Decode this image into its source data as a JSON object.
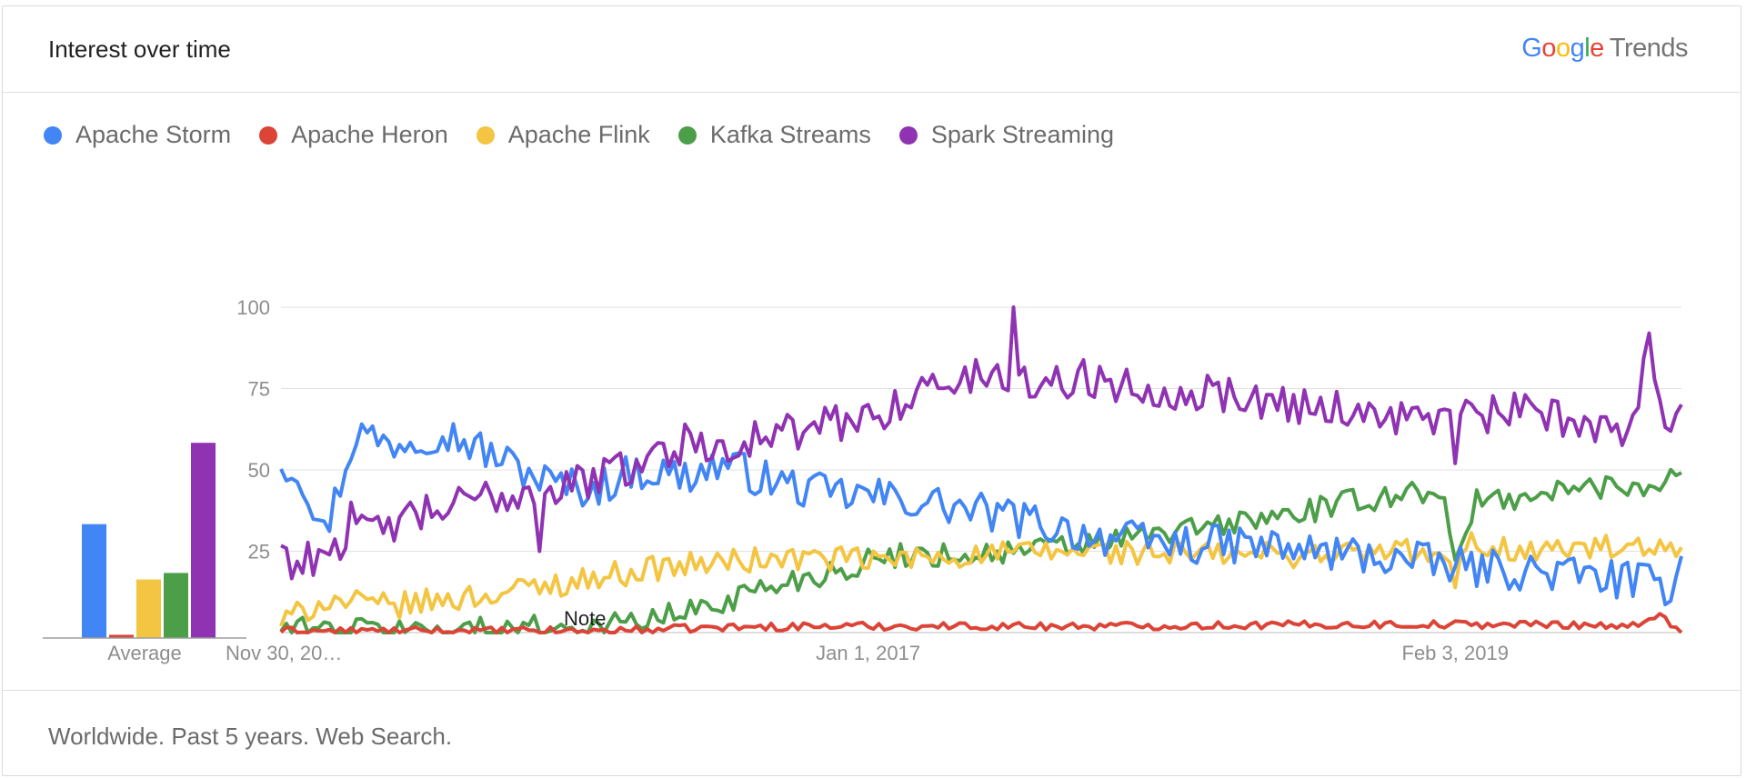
{
  "header": {
    "title": "Interest over time",
    "brand_google": "Google",
    "brand_trends": "Trends"
  },
  "footer": {
    "text": "Worldwide. Past 5 years. Web Search."
  },
  "note": "Note",
  "chart_data": {
    "type": "line",
    "title": "Interest over time",
    "ylim": [
      0,
      100
    ],
    "y_ticks": [
      25,
      50,
      75,
      100
    ],
    "x_tick_labels": [
      {
        "label": "Nov 30, 20…",
        "index": 0
      },
      {
        "label": "Jan 1, 2017",
        "index": 109
      },
      {
        "label": "Feb 3, 2019",
        "index": 218
      }
    ],
    "weeks": 261,
    "grid": true,
    "legend_position": "top-left",
    "series": [
      {
        "name": "Apache Storm",
        "color": "#4285f4",
        "keys": [
          [
            0,
            53
          ],
          [
            4,
            48
          ],
          [
            8,
            30
          ],
          [
            14,
            62
          ],
          [
            20,
            58
          ],
          [
            30,
            62
          ],
          [
            40,
            54
          ],
          [
            50,
            46
          ],
          [
            58,
            44
          ],
          [
            66,
            50
          ],
          [
            75,
            48
          ],
          [
            82,
            52
          ],
          [
            90,
            47
          ],
          [
            100,
            43
          ],
          [
            110,
            42
          ],
          [
            120,
            40
          ],
          [
            130,
            37
          ],
          [
            140,
            34
          ],
          [
            150,
            30
          ],
          [
            160,
            28
          ],
          [
            170,
            27
          ],
          [
            180,
            27
          ],
          [
            190,
            25
          ],
          [
            200,
            24
          ],
          [
            210,
            22
          ],
          [
            220,
            20
          ],
          [
            230,
            19
          ],
          [
            240,
            18
          ],
          [
            250,
            16
          ],
          [
            258,
            14
          ],
          [
            260,
            26
          ]
        ],
        "jitter": 6
      },
      {
        "name": "Apache Heron",
        "color": "#db4437",
        "keys": [
          [
            0,
            0.5
          ],
          [
            60,
            0.5
          ],
          [
            70,
            1
          ],
          [
            80,
            1.5
          ],
          [
            100,
            2
          ],
          [
            150,
            2
          ],
          [
            200,
            2.5
          ],
          [
            240,
            2.5
          ],
          [
            252,
            2
          ],
          [
            256,
            5
          ],
          [
            260,
            1
          ]
        ],
        "jitter": 1.2
      },
      {
        "name": "Apache Flink",
        "color": "#f4c542",
        "keys": [
          [
            0,
            3
          ],
          [
            8,
            10
          ],
          [
            20,
            8
          ],
          [
            40,
            12
          ],
          [
            55,
            16
          ],
          [
            70,
            20
          ],
          [
            85,
            22
          ],
          [
            100,
            23
          ],
          [
            110,
            22
          ],
          [
            130,
            24
          ],
          [
            150,
            25
          ],
          [
            170,
            24
          ],
          [
            190,
            24
          ],
          [
            210,
            25
          ],
          [
            216,
            22
          ],
          [
            218,
            15
          ],
          [
            220,
            28
          ],
          [
            230,
            25
          ],
          [
            245,
            26
          ],
          [
            260,
            24
          ]
        ],
        "jitter": 4
      },
      {
        "name": "Kafka Streams",
        "color": "#4c9e48",
        "keys": [
          [
            0,
            1
          ],
          [
            40,
            1
          ],
          [
            60,
            2
          ],
          [
            75,
            6
          ],
          [
            90,
            14
          ],
          [
            105,
            20
          ],
          [
            115,
            24
          ],
          [
            130,
            24
          ],
          [
            150,
            27
          ],
          [
            170,
            32
          ],
          [
            190,
            37
          ],
          [
            205,
            42
          ],
          [
            216,
            44
          ],
          [
            218,
            20
          ],
          [
            222,
            40
          ],
          [
            240,
            44
          ],
          [
            255,
            46
          ],
          [
            260,
            49
          ]
        ],
        "jitter": 4
      },
      {
        "name": "Spark Streaming",
        "color": "#9033b3",
        "keys": [
          [
            0,
            27
          ],
          [
            3,
            20
          ],
          [
            10,
            28
          ],
          [
            20,
            33
          ],
          [
            30,
            38
          ],
          [
            40,
            42
          ],
          [
            50,
            44
          ],
          [
            60,
            48
          ],
          [
            70,
            55
          ],
          [
            80,
            58
          ],
          [
            90,
            60
          ],
          [
            100,
            63
          ],
          [
            110,
            67
          ],
          [
            120,
            75
          ],
          [
            130,
            79
          ],
          [
            140,
            77
          ],
          [
            150,
            78
          ],
          [
            160,
            75
          ],
          [
            170,
            74
          ],
          [
            180,
            72
          ],
          [
            190,
            70
          ],
          [
            200,
            68
          ],
          [
            210,
            66
          ],
          [
            220,
            66
          ],
          [
            230,
            68
          ],
          [
            240,
            65
          ],
          [
            250,
            62
          ],
          [
            254,
            88
          ],
          [
            258,
            60
          ],
          [
            260,
            73
          ]
        ],
        "jitter": 6,
        "spikes": [
          [
            13,
            40
          ],
          [
            48,
            25
          ],
          [
            75,
            64
          ],
          [
            136,
            100
          ],
          [
            172,
            79
          ],
          [
            218,
            52
          ],
          [
            254,
            92
          ]
        ]
      }
    ]
  },
  "average_chart": {
    "label": "Average",
    "values": [
      35,
      1,
      18,
      20,
      60
    ]
  }
}
